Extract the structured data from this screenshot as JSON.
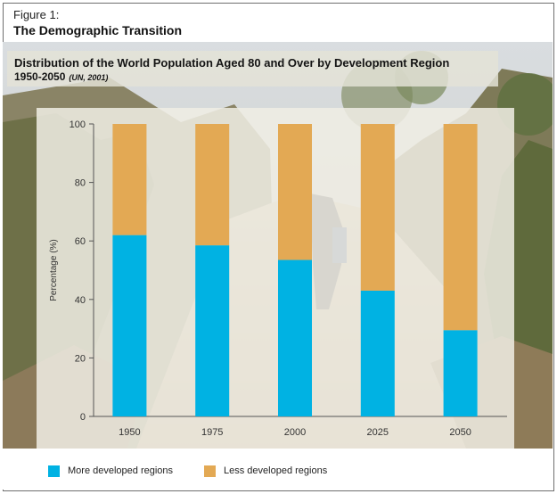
{
  "figure": {
    "label": "Figure 1:",
    "title": "The Demographic Transition"
  },
  "chart_data": {
    "type": "bar",
    "stacked": true,
    "title": "Distribution of the World Population Aged 80 and Over by Development Region",
    "subtitle": "1950-2050",
    "source": "(UN, 2001)",
    "xlabel": "",
    "ylabel": "Percentage (%)",
    "ylim": [
      0,
      100
    ],
    "yticks": [
      0,
      20,
      40,
      60,
      80,
      100
    ],
    "grid": false,
    "legend_position": "bottom",
    "categories": [
      "1950",
      "1975",
      "2000",
      "2025",
      "2050"
    ],
    "series": [
      {
        "name": "More developed regions",
        "color": "#00b2e3",
        "values": [
          62,
          58.5,
          53.5,
          43,
          29.5
        ]
      },
      {
        "name": "Less developed regions",
        "color": "#e3a954",
        "values": [
          38,
          41.5,
          46.5,
          57,
          70.5
        ]
      }
    ]
  }
}
